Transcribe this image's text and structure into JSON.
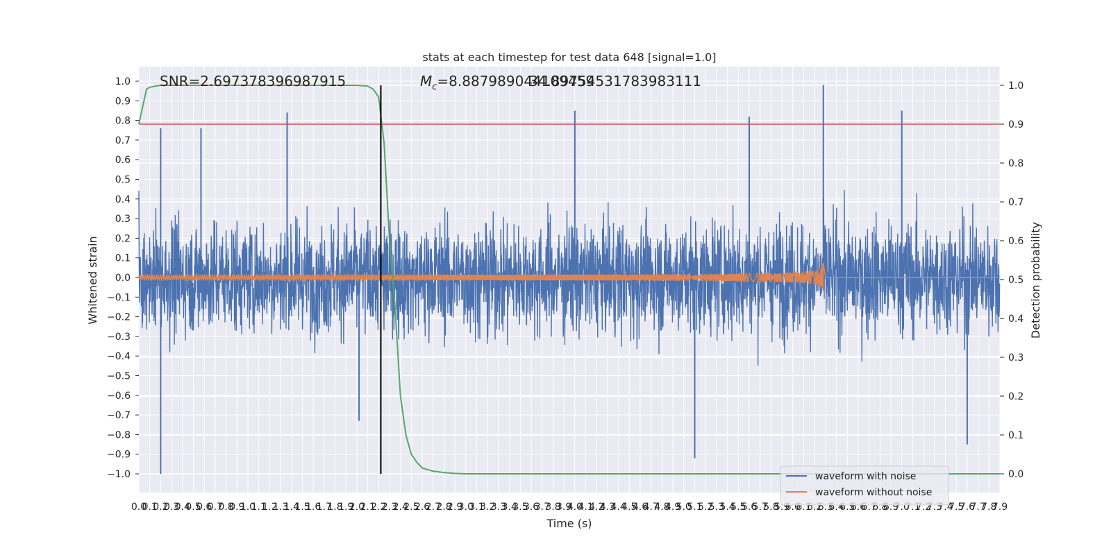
{
  "chart_data": {
    "type": "line",
    "title": "stats at each timestep for test data 648 [signal=1.0]",
    "xlabel": "Time (s)",
    "ylabel_left": "Whitened strain",
    "ylabel_right": "Detection probability",
    "xlim": [
      0.0,
      7.9
    ],
    "ylim_left": [
      -1.0,
      1.0
    ],
    "ylim_right": [
      0.0,
      1.0
    ],
    "x_ticks": [
      "0.0",
      "0.1",
      "0.2",
      "0.3",
      "0.4",
      "0.5",
      "0.6",
      "0.7",
      "0.8",
      "0.9",
      "1.0",
      "1.1",
      "1.2",
      "1.3",
      "1.4",
      "1.5",
      "1.6",
      "1.7",
      "1.8",
      "1.9",
      "2.0",
      "2.1",
      "2.2",
      "2.3",
      "2.4",
      "2.5",
      "2.6",
      "2.7",
      "2.8",
      "2.9",
      "3.0",
      "3.1",
      "3.2",
      "3.3",
      "3.4",
      "3.5",
      "3.6",
      "3.7",
      "3.8",
      "3.9",
      "4.0",
      "4.1",
      "4.2",
      "4.3",
      "4.4",
      "4.5",
      "4.6",
      "4.7",
      "4.8",
      "4.9",
      "5.0",
      "5.1",
      "5.2",
      "5.3",
      "5.4",
      "5.5",
      "5.6",
      "5.7",
      "5.8",
      "5.9",
      "6.0",
      "6.1",
      "6.2",
      "6.3",
      "6.4",
      "6.5",
      "6.6",
      "6.7",
      "6.8",
      "6.9",
      "7.0",
      "7.1",
      "7.2",
      "7.3",
      "7.4",
      "7.5",
      "7.6",
      "7.7",
      "7.8",
      "7.9"
    ],
    "y_ticks_left": [
      "1.0",
      "0.9",
      "0.8",
      "0.7",
      "0.6",
      "0.5",
      "0.4",
      "0.3",
      "0.2",
      "0.1",
      "0.0",
      "−0.1",
      "−0.2",
      "−0.3",
      "−0.4",
      "−0.5",
      "−0.6",
      "−0.7",
      "−0.8",
      "−0.9",
      "−1.0"
    ],
    "y_ticks_right": [
      "1.0",
      "0.9",
      "0.8",
      "0.7",
      "0.6",
      "0.5",
      "0.4",
      "0.3",
      "0.2",
      "0.1",
      "0.0"
    ],
    "annotations": {
      "snr": "SNR=2.697378396987915",
      "mc_symbol": "M",
      "mc_subscript": "c",
      "mc_value": "=8.887989044109459",
      "mc_overlap": "34.89754531783983111"
    },
    "threshold_probability": 0.9,
    "vertical_marker_time": 2.22,
    "grid": true,
    "legend_position": "bottom-right",
    "colors": {
      "noisy": "#4c72b0",
      "clean": "#dd8452",
      "probability": "#55a868",
      "threshold": "#c44e52",
      "marker": "#000000",
      "background": "#eaeaf2"
    },
    "series": [
      {
        "name": "waveform with noise",
        "description_of_envelope": "dense noise between about -0.45 and 0.45 with spikes",
        "typical_amplitude": 0.4,
        "peaks": [
          {
            "t": 0.2,
            "v": 0.76
          },
          {
            "t": 0.2,
            "v": -1.0
          },
          {
            "t": 0.57,
            "v": 0.76
          },
          {
            "t": 1.36,
            "v": 0.84
          },
          {
            "t": 2.02,
            "v": -0.73
          },
          {
            "t": 4.0,
            "v": 0.85
          },
          {
            "t": 5.1,
            "v": -0.92
          },
          {
            "t": 5.6,
            "v": 0.82
          },
          {
            "t": 6.28,
            "v": 0.98
          },
          {
            "t": 7.0,
            "v": 0.85
          },
          {
            "t": 7.6,
            "v": -0.85
          }
        ]
      },
      {
        "name": "waveform without noise",
        "description_of_envelope": "chirp growing from about 0.01 to 0.15 peak at merger",
        "merger_time": 6.28,
        "start_amplitude": 0.012,
        "peak_amplitude": 0.15
      },
      {
        "name": "detection probability",
        "t": [
          0.0,
          0.07,
          0.1,
          0.15,
          0.2,
          0.3,
          0.5,
          1.0,
          1.5,
          2.0,
          2.1,
          2.15,
          2.2,
          2.25,
          2.3,
          2.35,
          2.4,
          2.45,
          2.5,
          2.55,
          2.6,
          2.7,
          2.8,
          2.9,
          3.0,
          3.2,
          3.5,
          4.0,
          5.0,
          6.0,
          7.0,
          7.9
        ],
        "p": [
          0.9,
          0.99,
          0.995,
          0.998,
          1.0,
          1.0,
          1.0,
          1.0,
          1.0,
          1.0,
          0.998,
          0.99,
          0.97,
          0.85,
          0.6,
          0.43,
          0.2,
          0.1,
          0.05,
          0.03,
          0.015,
          0.007,
          0.003,
          0.001,
          0.0,
          0.0,
          0.0,
          0.0,
          0.0,
          0.0,
          0.0,
          0.0
        ]
      }
    ],
    "legend": [
      {
        "label": "waveform with noise",
        "color": "#4c72b0"
      },
      {
        "label": "waveform without noise",
        "color": "#dd8452"
      }
    ]
  }
}
